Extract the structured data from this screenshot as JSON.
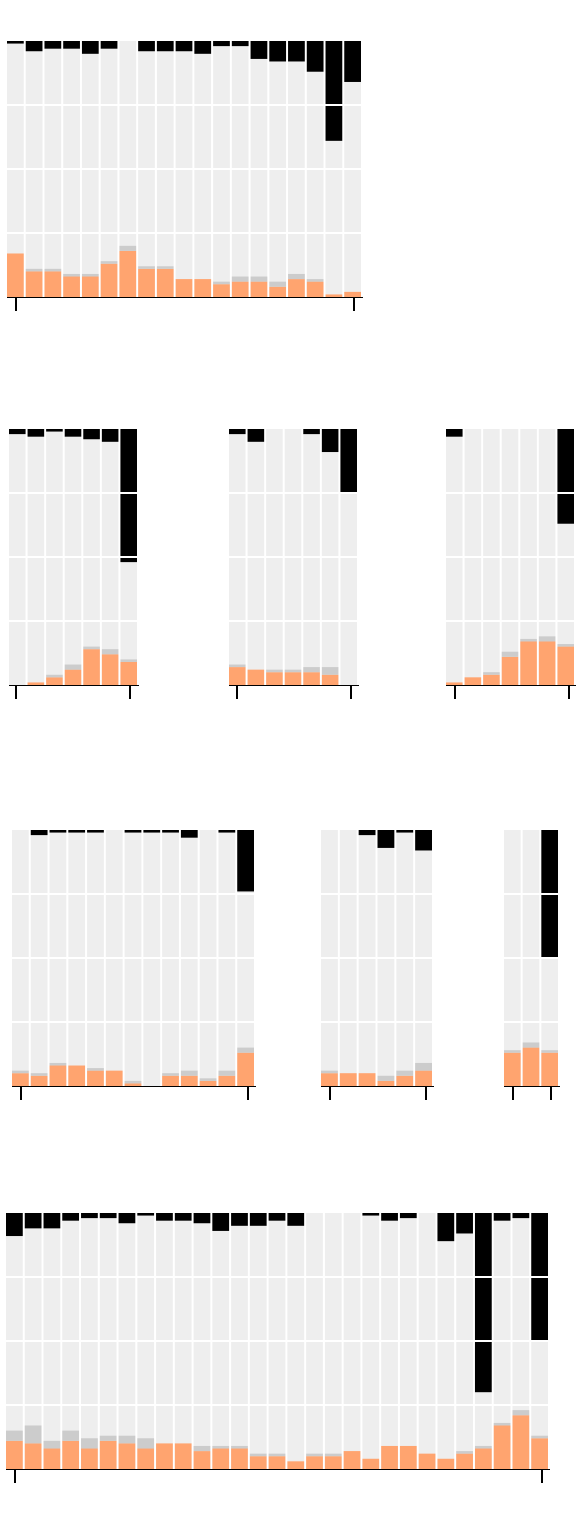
{
  "colors": {
    "background": "#eeeeee",
    "bottom": "#ffa46f",
    "middle": "#cccccc",
    "top": "#000000",
    "grid": "#ffffff",
    "axis": "#000000"
  },
  "chart_data": [
    {
      "type": "bar",
      "stacked": true,
      "ylim": [
        0,
        100
      ],
      "grid": true,
      "series": [
        {
          "values": [
            17,
            10,
            10,
            8,
            8,
            13,
            18,
            11,
            11,
            7,
            7,
            5,
            6,
            6,
            4,
            7,
            6,
            1,
            2
          ]
        },
        {
          "values": [
            0,
            1,
            1,
            1,
            1,
            1,
            2,
            1,
            1,
            0,
            0,
            1,
            2,
            2,
            2,
            2,
            1,
            0,
            0
          ]
        },
        {
          "values": [
            1,
            4,
            3,
            3,
            5,
            3,
            0,
            4,
            4,
            4,
            5,
            2,
            2,
            7,
            8,
            8,
            12,
            39,
            16
          ]
        }
      ]
    },
    {
      "type": "bar",
      "stacked": true,
      "ylim": [
        0,
        100
      ],
      "grid": true,
      "series": [
        {
          "values": [
            0,
            1,
            3,
            6,
            14,
            12,
            9
          ]
        },
        {
          "values": [
            0,
            0,
            1,
            2,
            1,
            2,
            1
          ]
        },
        {
          "values": [
            2,
            3,
            1,
            3,
            4,
            5,
            52
          ]
        }
      ]
    },
    {
      "type": "bar",
      "stacked": true,
      "ylim": [
        0,
        100
      ],
      "grid": true,
      "series": [
        {
          "values": [
            7,
            6,
            5,
            5,
            5,
            4,
            0
          ]
        },
        {
          "values": [
            1,
            0,
            1,
            1,
            2,
            3,
            0
          ]
        },
        {
          "values": [
            2,
            5,
            0,
            0,
            2,
            9,
            25
          ]
        }
      ]
    },
    {
      "type": "bar",
      "stacked": true,
      "ylim": [
        0,
        100
      ],
      "grid": true,
      "series": [
        {
          "values": [
            1,
            3,
            4,
            11,
            17,
            17,
            15
          ]
        },
        {
          "values": [
            0,
            0,
            1,
            2,
            1,
            2,
            1
          ]
        },
        {
          "values": [
            3,
            0,
            0,
            0,
            0,
            0,
            37
          ]
        }
      ]
    },
    {
      "type": "bar",
      "stacked": true,
      "ylim": [
        0,
        100
      ],
      "grid": true,
      "series": [
        {
          "values": [
            5,
            4,
            8,
            8,
            6,
            6,
            1,
            0,
            4,
            4,
            2,
            4,
            13
          ]
        },
        {
          "values": [
            1,
            1,
            1,
            0,
            1,
            0,
            1,
            0,
            1,
            2,
            1,
            2,
            2
          ]
        },
        {
          "values": [
            0,
            2,
            1,
            1,
            1,
            0,
            1,
            1,
            1,
            3,
            0,
            1,
            24
          ]
        }
      ]
    },
    {
      "type": "bar",
      "stacked": true,
      "ylim": [
        0,
        100
      ],
      "grid": true,
      "series": [
        {
          "values": [
            5,
            5,
            5,
            2,
            4,
            6
          ]
        },
        {
          "values": [
            1,
            0,
            0,
            2,
            2,
            3
          ]
        },
        {
          "values": [
            0,
            0,
            2,
            7,
            1,
            8
          ]
        }
      ]
    },
    {
      "type": "bar",
      "stacked": true,
      "ylim": [
        0,
        100
      ],
      "grid": true,
      "series": [
        {
          "values": [
            13,
            15,
            13
          ]
        },
        {
          "values": [
            1,
            2,
            1
          ]
        },
        {
          "values": [
            0,
            0,
            50
          ]
        }
      ]
    },
    {
      "type": "bar",
      "stacked": true,
      "ylim": [
        0,
        100
      ],
      "grid": true,
      "series": [
        {
          "values": [
            11,
            10,
            8,
            11,
            8,
            11,
            10,
            8,
            10,
            10,
            7,
            8,
            8,
            5,
            5,
            3,
            5,
            5,
            7,
            4,
            9,
            9,
            6,
            4,
            6,
            8,
            17,
            21,
            12
          ]
        },
        {
          "values": [
            4,
            7,
            3,
            4,
            4,
            2,
            3,
            4,
            0,
            0,
            2,
            1,
            1,
            1,
            1,
            0,
            1,
            1,
            0,
            0,
            0,
            0,
            0,
            0,
            1,
            1,
            1,
            2,
            1
          ]
        },
        {
          "values": [
            9,
            6,
            6,
            3,
            2,
            2,
            4,
            1,
            3,
            3,
            4,
            7,
            5,
            5,
            3,
            5,
            0,
            0,
            0,
            1,
            3,
            2,
            0,
            11,
            8,
            70,
            3,
            2,
            50
          ]
        }
      ]
    }
  ]
}
